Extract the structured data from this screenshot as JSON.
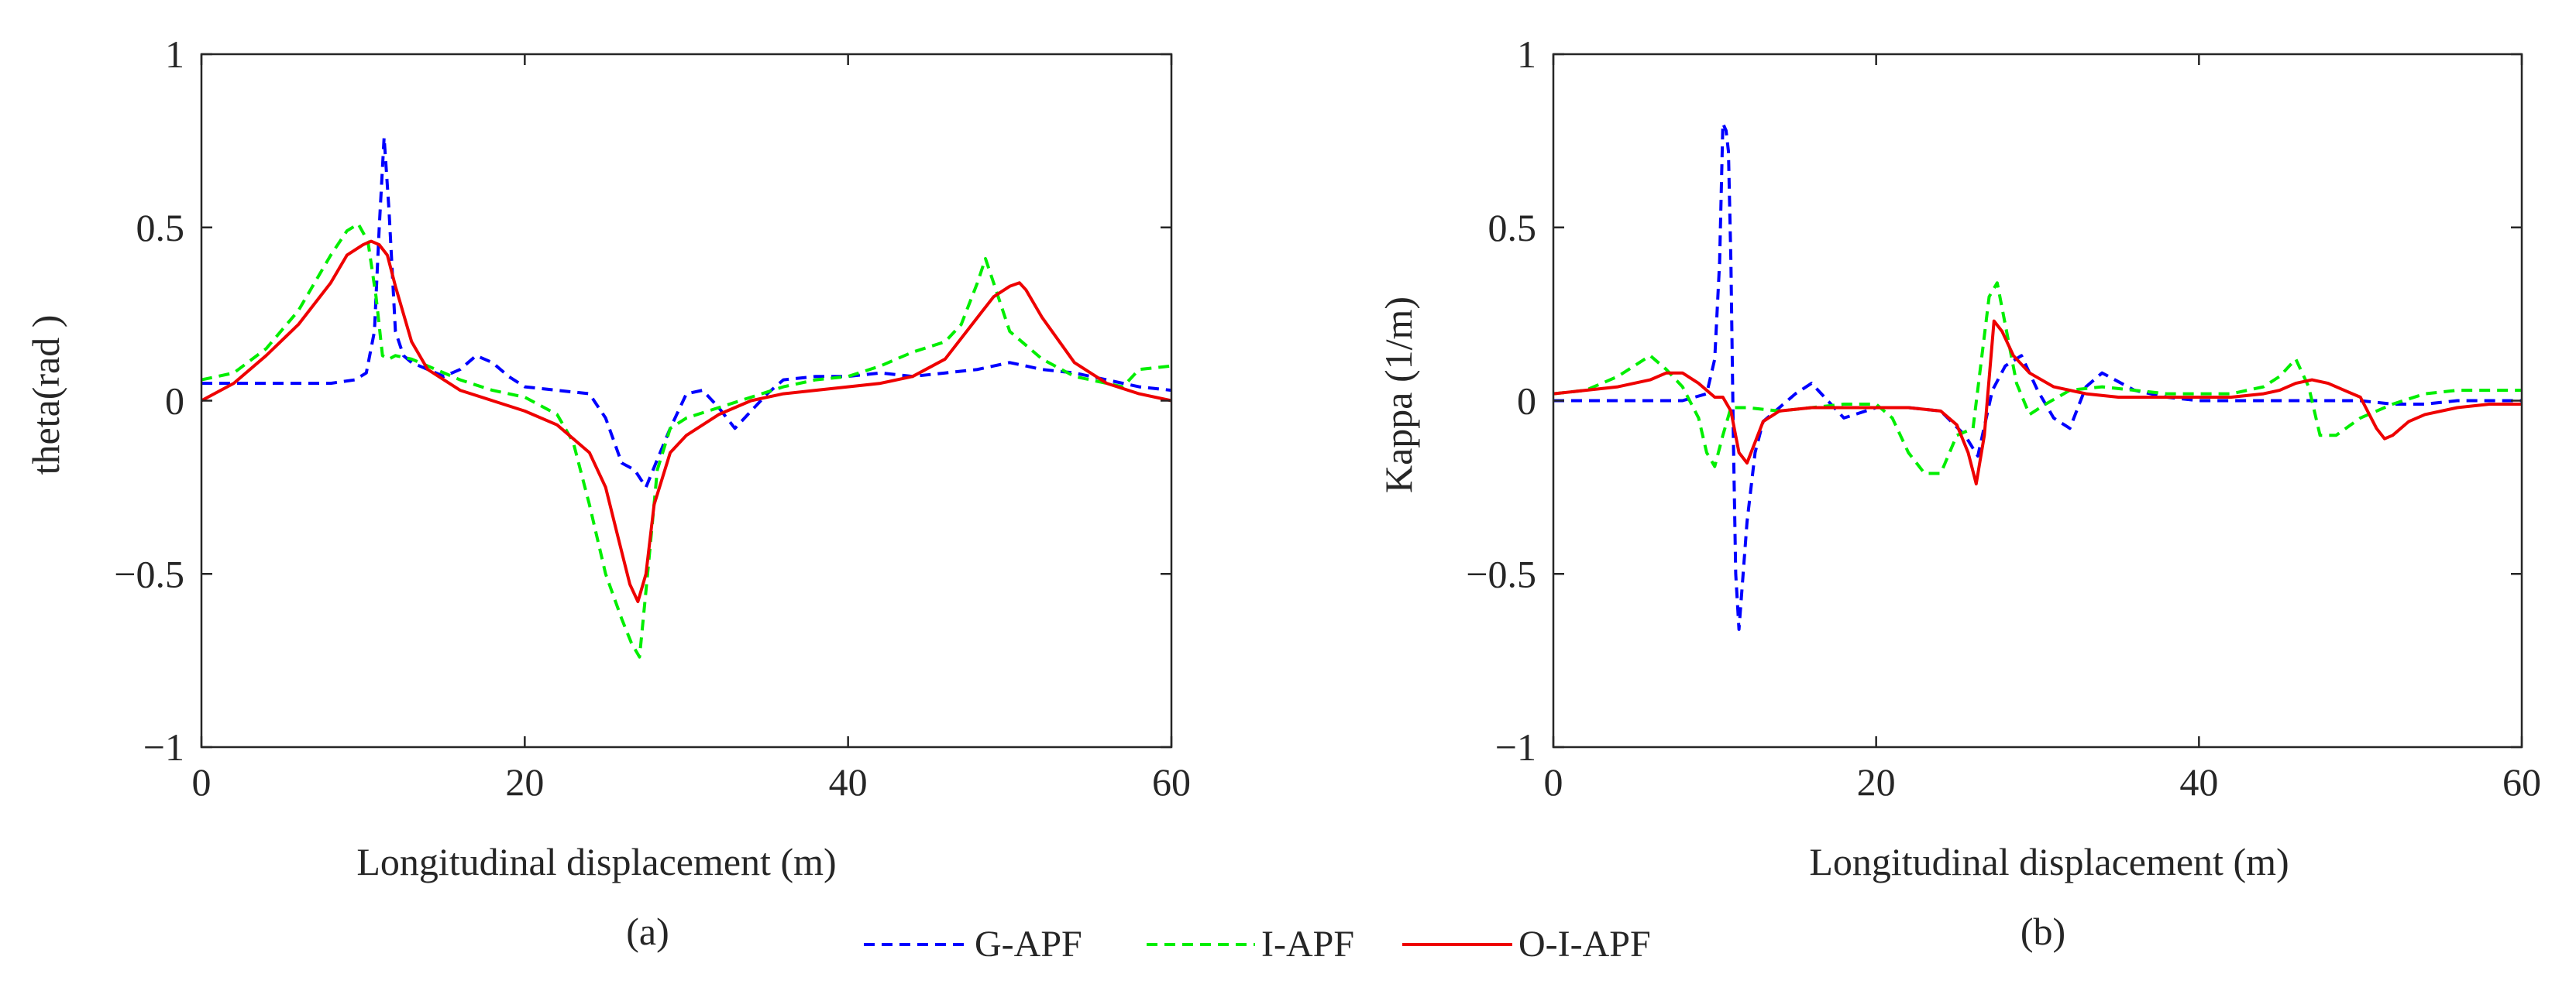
{
  "chart_data": [
    {
      "type": "line",
      "caption": "(a)",
      "xlabel": "Longitudinal displacement (m)",
      "ylabel": "theta(rad )",
      "xlim": [
        0,
        60
      ],
      "ylim": [
        -1,
        1
      ],
      "xticks": [
        0,
        20,
        40,
        60
      ],
      "yticks": [
        -1,
        -0.5,
        0,
        0.5,
        1
      ],
      "xtick_labels": [
        "0",
        "20",
        "40",
        "60"
      ],
      "ytick_labels": [
        "−1",
        "−0.5",
        "0",
        "0.5",
        "1"
      ],
      "grid": false,
      "series": [
        {
          "name": "G-APF",
          "color": "#0000ff",
          "style": "dashed",
          "x": [
            0,
            2,
            5,
            8,
            9.5,
            10.2,
            10.7,
            11.0,
            11.3,
            11.6,
            12.0,
            12.5,
            13,
            14,
            15,
            16,
            17,
            18,
            19,
            20,
            22,
            24,
            25,
            26,
            26.8,
            27.5,
            28.2,
            29,
            30,
            31,
            32,
            33,
            34,
            35,
            36,
            38,
            40,
            42,
            44,
            46,
            48,
            49,
            50,
            51,
            52,
            54,
            56,
            58,
            60
          ],
          "y": [
            0.05,
            0.05,
            0.05,
            0.05,
            0.06,
            0.08,
            0.2,
            0.5,
            0.76,
            0.55,
            0.2,
            0.13,
            0.11,
            0.09,
            0.07,
            0.09,
            0.13,
            0.11,
            0.07,
            0.04,
            0.03,
            0.02,
            -0.05,
            -0.18,
            -0.2,
            -0.25,
            -0.17,
            -0.08,
            0.02,
            0.03,
            -0.02,
            -0.08,
            -0.03,
            0.02,
            0.06,
            0.07,
            0.07,
            0.08,
            0.07,
            0.08,
            0.09,
            0.1,
            0.11,
            0.1,
            0.09,
            0.08,
            0.06,
            0.04,
            0.03
          ]
        },
        {
          "name": "I-APF",
          "color": "#00ee00",
          "style": "dashed",
          "x": [
            0,
            2,
            4,
            6,
            8,
            9,
            9.7,
            10.3,
            10.8,
            11.2,
            11.6,
            12,
            13,
            14,
            16,
            18,
            20,
            22,
            23,
            24,
            25,
            26,
            26.6,
            27.1,
            27.6,
            28.2,
            29,
            30,
            32,
            34,
            36,
            38,
            40,
            42,
            44,
            46,
            47,
            48,
            48.5,
            49,
            50,
            52,
            54,
            56,
            57,
            58,
            60
          ],
          "y": [
            0.06,
            0.08,
            0.15,
            0.26,
            0.42,
            0.49,
            0.51,
            0.46,
            0.3,
            0.13,
            0.12,
            0.13,
            0.12,
            0.1,
            0.06,
            0.03,
            0.01,
            -0.04,
            -0.12,
            -0.3,
            -0.5,
            -0.63,
            -0.7,
            -0.74,
            -0.5,
            -0.2,
            -0.08,
            -0.05,
            -0.02,
            0.01,
            0.04,
            0.06,
            0.07,
            0.1,
            0.14,
            0.17,
            0.22,
            0.34,
            0.41,
            0.34,
            0.2,
            0.12,
            0.07,
            0.05,
            0.04,
            0.09,
            0.1
          ]
        },
        {
          "name": "O-I-APF",
          "color": "#ee0000",
          "style": "solid",
          "x": [
            0,
            2,
            4,
            6,
            8,
            9,
            10,
            10.5,
            11,
            11.5,
            12,
            13,
            14,
            16,
            18,
            20,
            22,
            24,
            25,
            25.8,
            26.5,
            27,
            27.5,
            28,
            29,
            30,
            32,
            34,
            36,
            38,
            40,
            42,
            44,
            46,
            48,
            49,
            50,
            50.6,
            51,
            52,
            54,
            56,
            58,
            60
          ],
          "y": [
            0,
            0.05,
            0.13,
            0.22,
            0.34,
            0.42,
            0.45,
            0.46,
            0.45,
            0.42,
            0.33,
            0.17,
            0.09,
            0.03,
            0,
            -0.03,
            -0.07,
            -0.15,
            -0.25,
            -0.4,
            -0.53,
            -0.58,
            -0.5,
            -0.3,
            -0.15,
            -0.1,
            -0.04,
            0,
            0.02,
            0.03,
            0.04,
            0.05,
            0.07,
            0.12,
            0.24,
            0.3,
            0.33,
            0.34,
            0.32,
            0.24,
            0.11,
            0.05,
            0.02,
            0
          ]
        }
      ]
    },
    {
      "type": "line",
      "caption": "(b)",
      "xlabel": "Longitudinal displacement (m)",
      "ylabel": "Kappa (1/m)",
      "xlim": [
        0,
        60
      ],
      "ylim": [
        -1,
        1
      ],
      "xticks": [
        0,
        20,
        40,
        60
      ],
      "yticks": [
        -1,
        -0.5,
        0,
        0.5,
        1
      ],
      "xtick_labels": [
        "0",
        "20",
        "40",
        "60"
      ],
      "ytick_labels": [
        "−1",
        "−0.5",
        "0",
        "0.5",
        "1"
      ],
      "grid": false,
      "series": [
        {
          "name": "G-APF",
          "color": "#0000ff",
          "style": "dashed",
          "x": [
            0,
            4,
            8,
            9.5,
            10.0,
            10.3,
            10.5,
            10.7,
            10.85,
            11.0,
            11.15,
            11.3,
            11.5,
            12,
            12.5,
            13,
            14,
            15,
            16,
            17,
            18,
            20,
            22,
            24,
            25.5,
            26.3,
            27.2,
            28,
            29,
            30,
            31,
            32,
            33,
            34,
            36,
            38,
            40,
            42,
            44,
            46,
            47,
            48,
            50,
            52,
            54,
            56,
            58,
            60
          ],
          "y": [
            0,
            0,
            0,
            0.02,
            0.12,
            0.4,
            0.8,
            0.78,
            0.72,
            0.4,
            -0.1,
            -0.5,
            -0.66,
            -0.35,
            -0.15,
            -0.06,
            -0.02,
            0.02,
            0.05,
            0,
            -0.05,
            -0.02,
            -0.02,
            -0.03,
            -0.1,
            -0.16,
            0.03,
            0.1,
            0.13,
            0.03,
            -0.05,
            -0.08,
            0.04,
            0.08,
            0.03,
            0.01,
            0,
            0,
            0,
            0,
            0,
            0,
            0,
            -0.01,
            -0.01,
            0,
            0,
            0
          ]
        },
        {
          "name": "I-APF",
          "color": "#00ee00",
          "style": "dashed",
          "x": [
            0,
            2,
            4,
            5,
            6,
            7,
            8,
            9,
            9.5,
            10,
            10.5,
            11,
            12,
            14,
            16,
            18,
            20,
            21,
            22,
            23,
            24,
            25,
            26,
            27,
            27.5,
            28,
            28.7,
            29.5,
            30.5,
            32,
            34,
            36,
            38,
            40,
            42,
            44,
            45,
            46,
            46.8,
            47.5,
            48.5,
            50,
            52,
            54,
            56,
            58,
            60
          ],
          "y": [
            0.02,
            0.03,
            0.07,
            0.1,
            0.13,
            0.09,
            0.04,
            -0.05,
            -0.15,
            -0.19,
            -0.1,
            -0.02,
            -0.02,
            -0.03,
            -0.02,
            -0.01,
            -0.01,
            -0.05,
            -0.15,
            -0.21,
            -0.21,
            -0.1,
            -0.08,
            0.3,
            0.34,
            0.22,
            0.05,
            -0.04,
            -0.01,
            0.03,
            0.04,
            0.03,
            0.02,
            0.02,
            0.02,
            0.04,
            0.07,
            0.12,
            0.04,
            -0.1,
            -0.1,
            -0.05,
            -0.01,
            0.02,
            0.03,
            0.03,
            0.03
          ]
        },
        {
          "name": "O-I-APF",
          "color": "#ee0000",
          "style": "solid",
          "x": [
            0,
            2,
            4,
            6,
            7,
            8,
            9,
            10,
            10.5,
            11,
            11.5,
            12,
            12.5,
            13,
            14,
            16,
            18,
            20,
            22,
            24,
            25,
            25.7,
            26.2,
            26.7,
            27.3,
            27.8,
            28.5,
            29.5,
            31,
            33,
            35,
            38,
            40,
            42,
            44,
            45,
            46,
            47,
            48,
            49,
            50,
            51,
            51.5,
            52,
            53,
            54,
            56,
            58,
            60
          ],
          "y": [
            0.02,
            0.03,
            0.04,
            0.06,
            0.08,
            0.08,
            0.05,
            0.01,
            0.01,
            -0.03,
            -0.15,
            -0.18,
            -0.12,
            -0.06,
            -0.03,
            -0.02,
            -0.02,
            -0.02,
            -0.02,
            -0.03,
            -0.07,
            -0.15,
            -0.24,
            -0.1,
            0.23,
            0.2,
            0.13,
            0.08,
            0.04,
            0.02,
            0.01,
            0.01,
            0.01,
            0.01,
            0.02,
            0.03,
            0.05,
            0.06,
            0.05,
            0.03,
            0.01,
            -0.08,
            -0.11,
            -0.1,
            -0.06,
            -0.04,
            -0.02,
            -0.01,
            -0.01
          ]
        }
      ]
    }
  ],
  "legend": {
    "placement": "bottom-center",
    "entries": [
      {
        "label": "G-APF",
        "color": "#0000ff",
        "style": "dashed"
      },
      {
        "label": "I-APF",
        "color": "#00ee00",
        "style": "dashed"
      },
      {
        "label": "O-I-APF",
        "color": "#ee0000",
        "style": "solid"
      }
    ]
  }
}
